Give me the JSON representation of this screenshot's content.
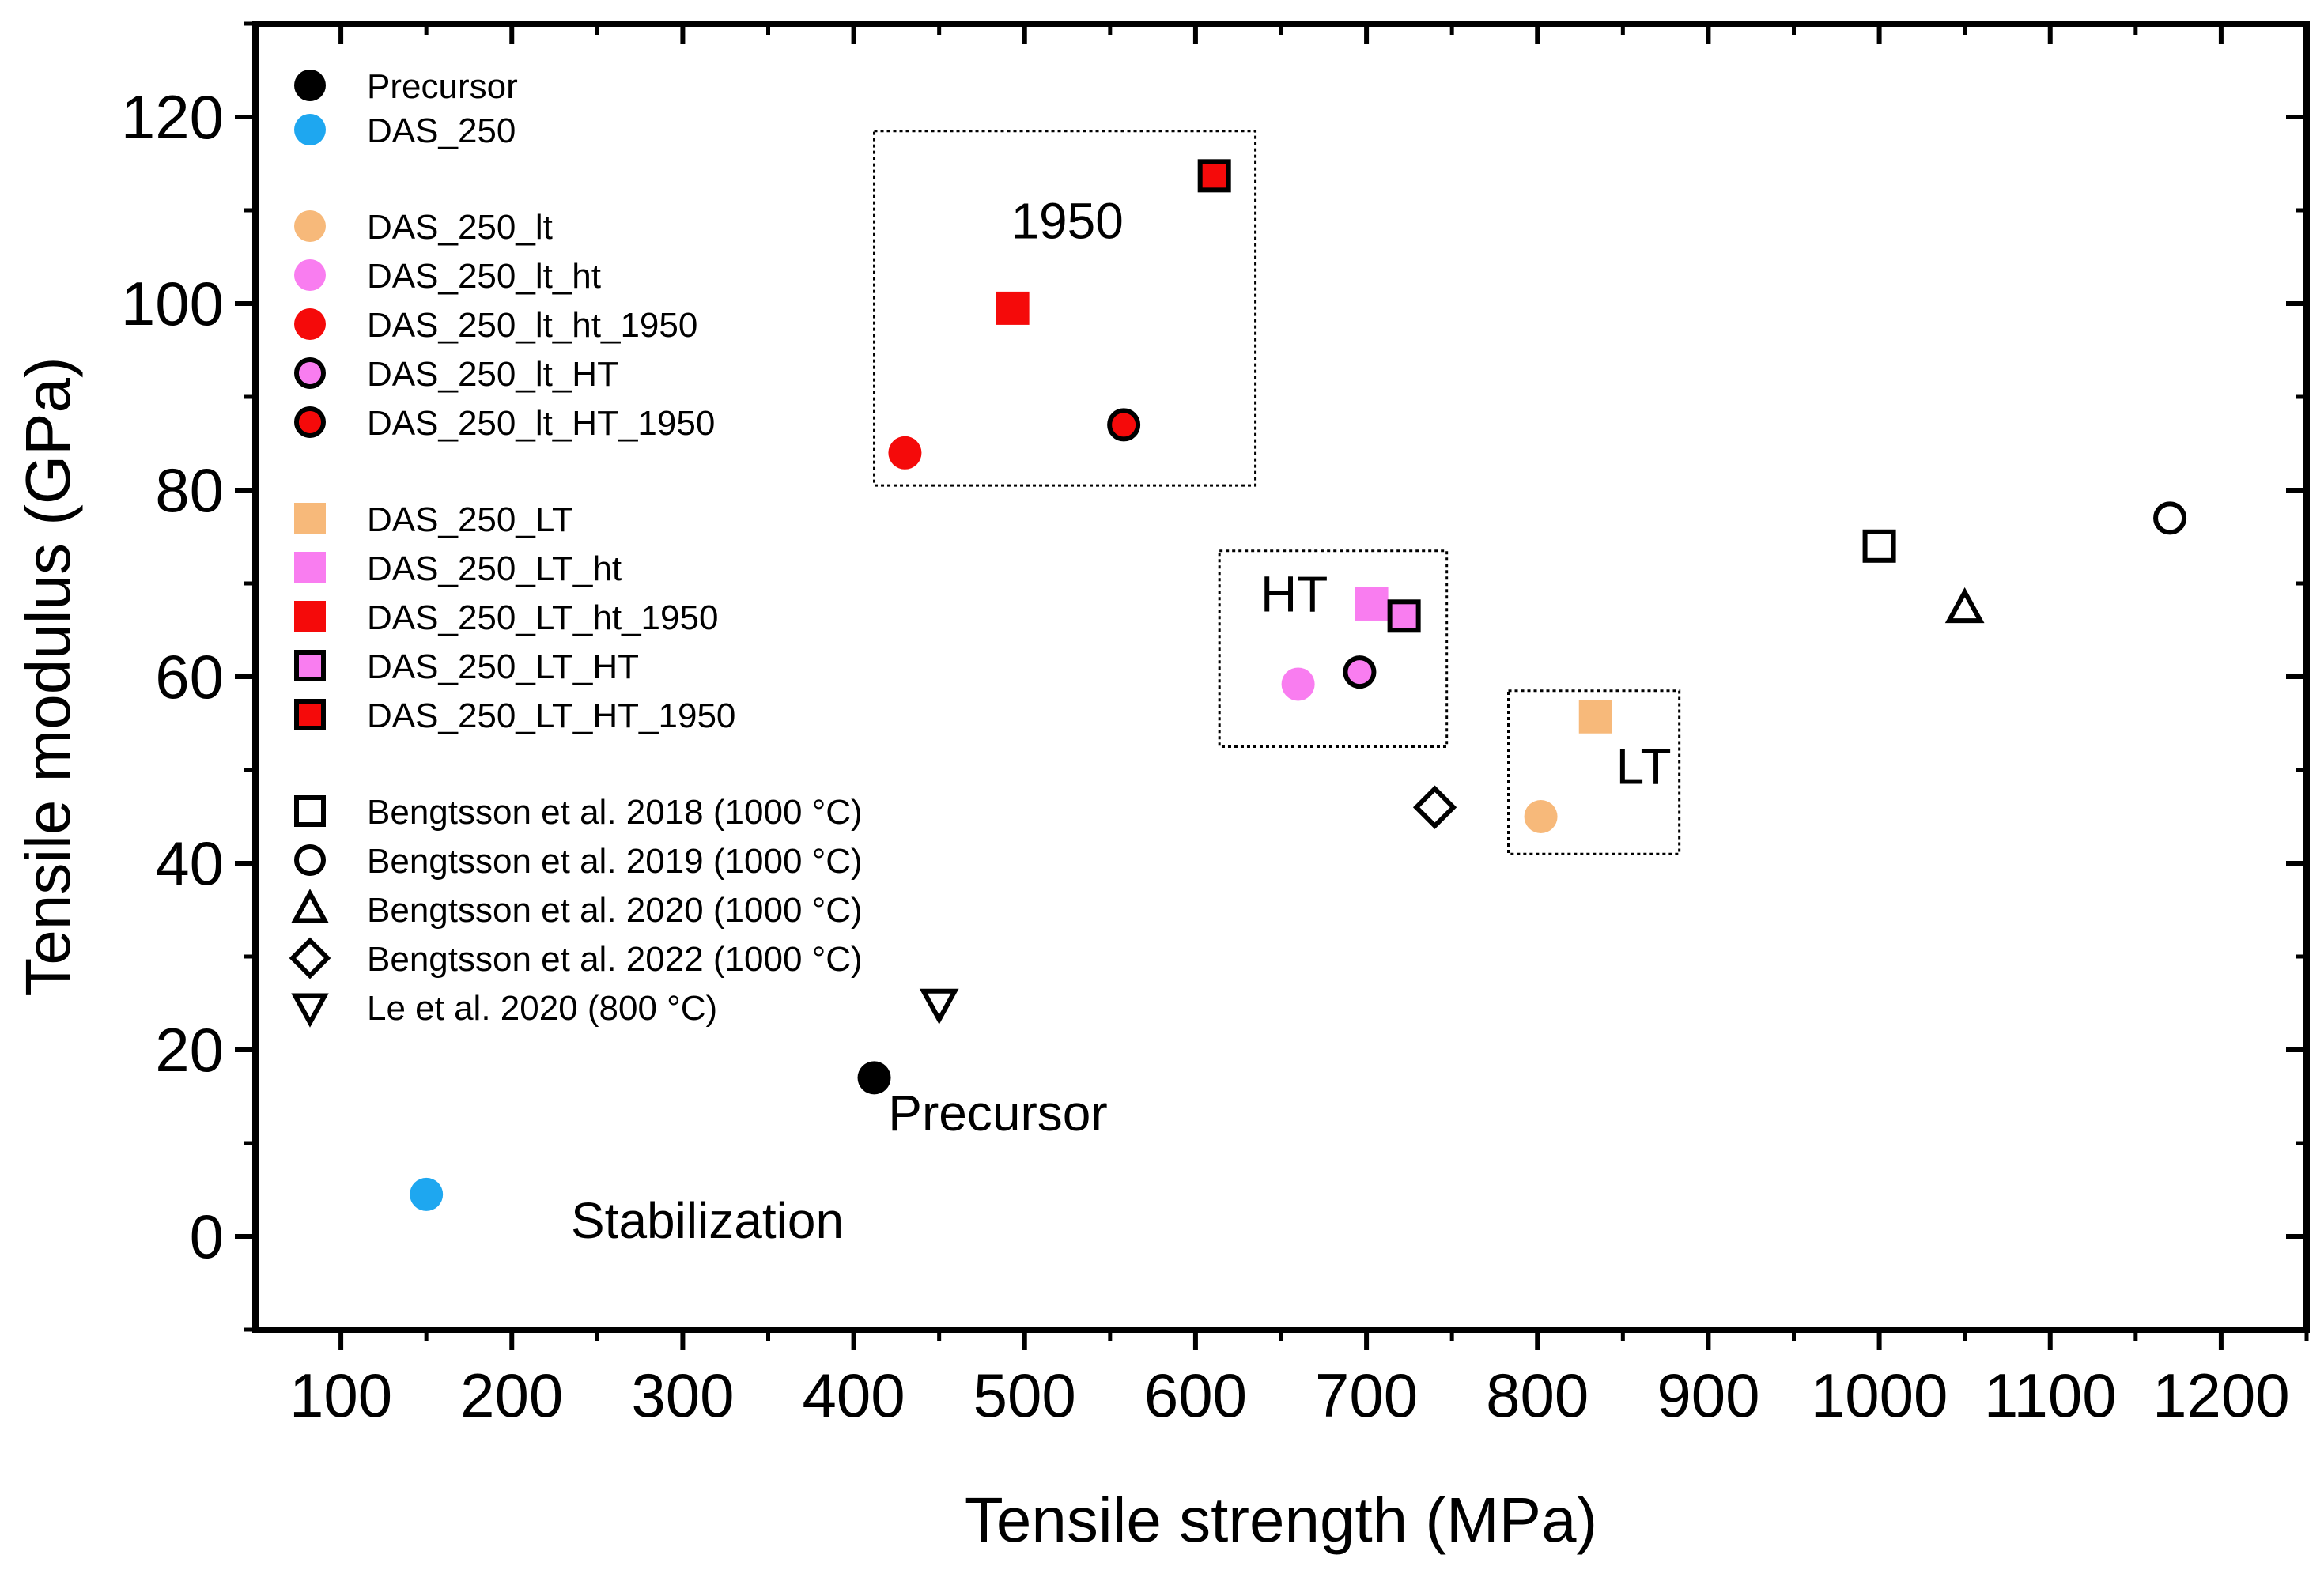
{
  "chart_data": {
    "type": "scatter",
    "xlabel": "Tensile strength (MPa)",
    "ylabel": "Tensile modulus (GPa)",
    "xlim": [
      50,
      1250
    ],
    "ylim": [
      -10,
      130
    ],
    "xticks": [
      100,
      200,
      300,
      400,
      500,
      600,
      700,
      800,
      900,
      1000,
      1100,
      1200
    ],
    "yticks": [
      0,
      20,
      40,
      60,
      80,
      100,
      120
    ],
    "grid": false,
    "legend_position": "top-left",
    "series": [
      {
        "name": "Precursor",
        "marker": "circle",
        "fill": "#000000",
        "edge": "#000000",
        "x": [
          412
        ],
        "y": [
          17
        ]
      },
      {
        "name": "DAS_250",
        "marker": "circle",
        "fill": "#1ea7f0",
        "edge": "#1ea7f0",
        "x": [
          150
        ],
        "y": [
          4.5
        ]
      },
      {
        "name": "DAS_250_lt",
        "marker": "circle",
        "fill": "#f7b97a",
        "edge": "#f7b97a",
        "x": [
          802
        ],
        "y": [
          45
        ]
      },
      {
        "name": "DAS_250_lt_ht",
        "marker": "circle",
        "fill": "#f97df0",
        "edge": "#f97df0",
        "x": [
          660
        ],
        "y": [
          59.2
        ]
      },
      {
        "name": "DAS_250_lt_ht_1950",
        "marker": "circle",
        "fill": "#f50a0a",
        "edge": "#f50a0a",
        "x": [
          430
        ],
        "y": [
          84
        ]
      },
      {
        "name": "DAS_250_lt_HT",
        "marker": "circle",
        "fill": "#f97df0",
        "edge": "#000000",
        "x": [
          696
        ],
        "y": [
          60.5
        ]
      },
      {
        "name": "DAS_250_lt_HT_1950",
        "marker": "circle",
        "fill": "#f50a0a",
        "edge": "#000000",
        "x": [
          558
        ],
        "y": [
          87
        ]
      },
      {
        "name": "DAS_250_LT",
        "marker": "square",
        "fill": "#f7b97a",
        "edge": "#f7b97a",
        "x": [
          834
        ],
        "y": [
          55.7
        ]
      },
      {
        "name": "DAS_250_LT_ht",
        "marker": "square",
        "fill": "#f97df0",
        "edge": "#f97df0",
        "x": [
          703
        ],
        "y": [
          67.8
        ]
      },
      {
        "name": "DAS_250_LT_ht_1950",
        "marker": "square",
        "fill": "#f50a0a",
        "edge": "#f50a0a",
        "x": [
          493
        ],
        "y": [
          99.5
        ]
      },
      {
        "name": "DAS_250_LT_HT",
        "marker": "square",
        "fill": "#f97df0",
        "edge": "#000000",
        "x": [
          722
        ],
        "y": [
          66.5
        ]
      },
      {
        "name": "DAS_250_LT_HT_1950",
        "marker": "square",
        "fill": "#f50a0a",
        "edge": "#000000",
        "x": [
          611
        ],
        "y": [
          113.7
        ]
      },
      {
        "name": "Bengtsson et al. 2018 (1000 °C)",
        "marker": "square",
        "fill": "none",
        "edge": "#000000",
        "x": [
          1000
        ],
        "y": [
          74
        ]
      },
      {
        "name": "Bengtsson et al. 2019 (1000 °C)",
        "marker": "circle",
        "fill": "none",
        "edge": "#000000",
        "x": [
          1170
        ],
        "y": [
          77
        ]
      },
      {
        "name": "Bengtsson et al. 2020 (1000 °C)",
        "marker": "triangle-up",
        "fill": "none",
        "edge": "#000000",
        "x": [
          1050
        ],
        "y": [
          67.3
        ]
      },
      {
        "name": "Bengtsson et al. 2022 (1000 °C)",
        "marker": "diamond",
        "fill": "none",
        "edge": "#000000",
        "x": [
          740
        ],
        "y": [
          46
        ]
      },
      {
        "name": "Le et al. 2020 (800 °C)",
        "marker": "triangle-down",
        "fill": "none",
        "edge": "#000000",
        "x": [
          450
        ],
        "y": [
          25
        ]
      }
    ],
    "annotations": [
      {
        "text": "Precursor",
        "x": 415,
        "y": 10.5
      },
      {
        "text": "Stabilization",
        "x": 245,
        "y": -1
      }
    ],
    "group_boxes": [
      {
        "label": "1950",
        "x_range": [
          412,
          635
        ],
        "y_range": [
          80.5,
          118.5
        ],
        "label_x": 492,
        "label_y": 107
      },
      {
        "label": "HT",
        "x_range": [
          614,
          747
        ],
        "y_range": [
          52.5,
          73.5
        ],
        "label_x": 638,
        "label_y": 67
      },
      {
        "label": "LT",
        "x_range": [
          783,
          883
        ],
        "y_range": [
          41,
          58.5
        ],
        "label_x": 846,
        "label_y": 48.5
      }
    ]
  }
}
